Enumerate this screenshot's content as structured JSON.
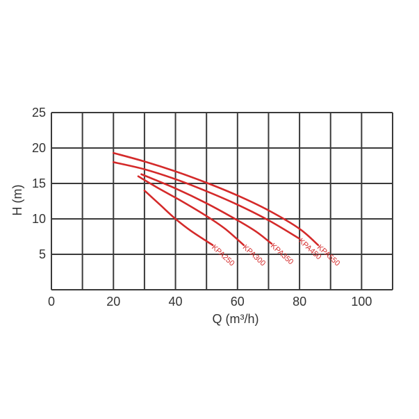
{
  "chart_data": {
    "type": "line",
    "xlabel": "Q (m³/h)",
    "ylabel": "H (m)",
    "xlim": [
      0,
      110
    ],
    "ylim": [
      0,
      25
    ],
    "xticks": [
      0,
      20,
      40,
      60,
      80,
      100
    ],
    "yticks": [
      5,
      10,
      15,
      20,
      25
    ],
    "grid": true,
    "color": "#d42a2a",
    "series": [
      {
        "name": "KPA250",
        "x": [
          30,
          35,
          40,
          45,
          52
        ],
        "y": [
          14,
          12,
          10,
          8.3,
          6.3
        ]
      },
      {
        "name": "KPA300",
        "x": [
          28,
          35,
          42,
          50,
          56,
          62
        ],
        "y": [
          16,
          14.2,
          12.5,
          10.4,
          8.6,
          6.3
        ]
      },
      {
        "name": "KPA350",
        "x": [
          29,
          40,
          50,
          60,
          66,
          71
        ],
        "y": [
          16.3,
          14.3,
          12.2,
          9.8,
          8.2,
          6.5
        ]
      },
      {
        "name": "KPA450",
        "x": [
          20,
          30,
          40,
          50,
          60,
          70,
          80
        ],
        "y": [
          18,
          17,
          15.6,
          13.9,
          12,
          9.8,
          7.2
        ]
      },
      {
        "name": "KPA550",
        "x": [
          20,
          30,
          40,
          50,
          60,
          70,
          80,
          86
        ],
        "y": [
          19.3,
          18.1,
          16.7,
          15.1,
          13.3,
          11.2,
          8.6,
          6.3
        ]
      }
    ]
  }
}
